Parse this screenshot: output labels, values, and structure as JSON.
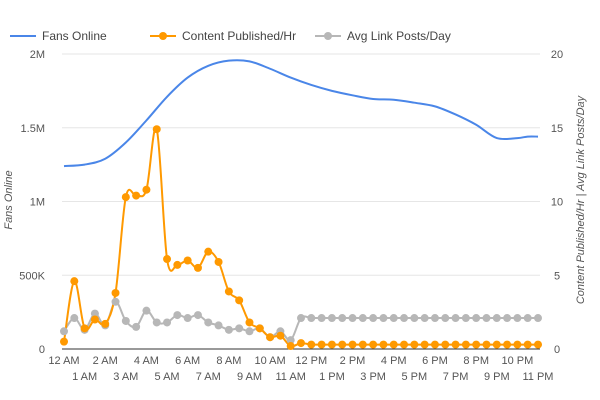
{
  "chart_data": {
    "type": "line",
    "x_categories": [
      "12 AM",
      "1 AM",
      "2 AM",
      "3 AM",
      "4 AM",
      "5 AM",
      "6 AM",
      "7 AM",
      "8 AM",
      "9 AM",
      "10 AM",
      "11 AM",
      "12 PM",
      "1 PM",
      "2 PM",
      "3 PM",
      "4 PM",
      "5 PM",
      "6 PM",
      "7 PM",
      "8 PM",
      "9 PM",
      "10 PM",
      "11 PM"
    ],
    "left_axis": {
      "title": "Fans Online",
      "ylim": [
        0,
        2000000
      ],
      "ticks": [
        {
          "value": 0,
          "label": "0"
        },
        {
          "value": 500000,
          "label": "500K"
        },
        {
          "value": 1000000,
          "label": "1M"
        },
        {
          "value": 1500000,
          "label": "1.5M"
        },
        {
          "value": 2000000,
          "label": "2M"
        }
      ]
    },
    "right_axis": {
      "title": "Content Published/Hr | Avg Link Posts/Day",
      "ylim": [
        0,
        20
      ],
      "ticks": [
        {
          "value": 0,
          "label": "0"
        },
        {
          "value": 5,
          "label": "5"
        },
        {
          "value": 10,
          "label": "10"
        },
        {
          "value": 15,
          "label": "15"
        },
        {
          "value": 20,
          "label": "20"
        }
      ]
    },
    "series": [
      {
        "name": "Fans Online",
        "axis": "left",
        "color": "#4a86e8",
        "markers": false,
        "x": [
          0,
          1,
          2,
          3,
          4,
          5,
          6,
          7,
          8,
          9,
          10,
          11,
          12,
          13,
          14,
          15,
          16,
          17,
          18,
          19,
          20,
          21,
          22,
          22.5,
          23
        ],
        "values": [
          1240000,
          1250000,
          1290000,
          1400000,
          1550000,
          1710000,
          1840000,
          1920000,
          1955000,
          1950000,
          1900000,
          1840000,
          1790000,
          1750000,
          1720000,
          1695000,
          1690000,
          1670000,
          1645000,
          1590000,
          1520000,
          1430000,
          1430000,
          1440000,
          1440000
        ]
      },
      {
        "name": "Content Published/Hr",
        "axis": "right",
        "color": "#ff9900",
        "markers": true,
        "x": [
          0,
          0.5,
          1,
          1.5,
          2,
          2.5,
          3,
          3.5,
          4,
          4.5,
          5,
          5.5,
          6,
          6.5,
          7,
          7.5,
          8,
          8.5,
          9,
          9.5,
          10,
          10.5,
          11,
          11.5,
          12,
          12.5,
          13,
          13.5,
          14,
          14.5,
          15,
          15.5,
          16,
          16.5,
          17,
          17.5,
          18,
          18.5,
          19,
          19.5,
          20,
          20.5,
          21,
          21.5,
          22,
          22.5,
          23
        ],
        "values": [
          0.5,
          4.6,
          1.4,
          2.0,
          1.7,
          3.8,
          10.3,
          10.4,
          10.8,
          14.9,
          6.1,
          5.7,
          6.0,
          5.5,
          6.6,
          5.9,
          3.9,
          3.3,
          1.8,
          1.4,
          0.8,
          0.9,
          0.2,
          0.4,
          0.3,
          0.3,
          0.3,
          0.3,
          0.3,
          0.3,
          0.3,
          0.3,
          0.3,
          0.3,
          0.3,
          0.3,
          0.3,
          0.3,
          0.3,
          0.3,
          0.3,
          0.3,
          0.3,
          0.3,
          0.3,
          0.3,
          0.3
        ]
      },
      {
        "name": "Avg Link Posts/Day",
        "axis": "right",
        "color": "#b7b7b7",
        "markers": true,
        "x": [
          0,
          0.5,
          1,
          1.5,
          2,
          2.5,
          3,
          3.5,
          4,
          4.5,
          5,
          5.5,
          6,
          6.5,
          7,
          7.5,
          8,
          8.5,
          9,
          9.5,
          10,
          10.5,
          11,
          11.5,
          12,
          12.5,
          13,
          13.5,
          14,
          14.5,
          15,
          15.5,
          16,
          16.5,
          17,
          17.5,
          18,
          18.5,
          19,
          19.5,
          20,
          20.5,
          21,
          21.5,
          22,
          22.5,
          23
        ],
        "values": [
          1.2,
          2.1,
          1.3,
          2.4,
          1.6,
          3.2,
          1.9,
          1.5,
          2.6,
          1.8,
          1.8,
          2.3,
          2.1,
          2.3,
          1.8,
          1.6,
          1.3,
          1.4,
          1.2,
          1.4,
          0.8,
          1.2,
          0.6,
          2.1,
          2.1,
          2.1,
          2.1,
          2.1,
          2.1,
          2.1,
          2.1,
          2.1,
          2.1,
          2.1,
          2.1,
          2.1,
          2.1,
          2.1,
          2.1,
          2.1,
          2.1,
          2.1,
          2.1,
          2.1,
          2.1,
          2.1,
          2.1
        ]
      }
    ],
    "grid": true,
    "legend_position": "top-left"
  }
}
